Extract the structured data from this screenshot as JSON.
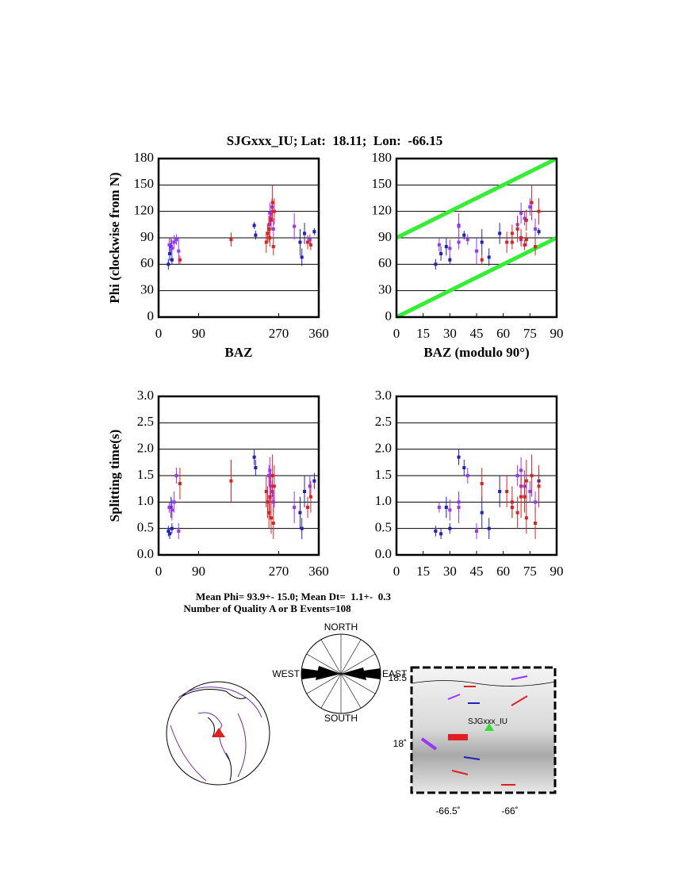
{
  "title": "SJGxxx_IU; Lat:  18.11;  Lon:  -66.15",
  "summary": [
    "Mean Phi= 93.9+- 15.0; Mean Dt=  1.1+-  0.3",
    "Number of Quality A or B Events=108"
  ],
  "rose": {
    "north": "NORTH",
    "south": "SOUTH",
    "east": "EAST",
    "west": "WEST"
  },
  "map": {
    "station": "SJGxxx_IU",
    "lat_labels": [
      "18.5",
      "18˚"
    ],
    "lon_labels": [
      "-66.5˚",
      "-66˚"
    ]
  },
  "chart_data": [
    {
      "type": "scatter",
      "ylabel": "Phi (clockwise from N)",
      "xlabel": "BAZ",
      "xlim": [
        0,
        360
      ],
      "ylim": [
        0,
        180
      ],
      "xticks": [
        0,
        90,
        270,
        360
      ],
      "yticks": [
        0,
        30,
        60,
        90,
        120,
        150,
        180
      ],
      "grid": true,
      "series": [
        {
          "color": "#2020c0",
          "x": [
            22,
            25,
            28,
            30,
            215,
            218,
            318,
            322,
            328,
            350
          ],
          "values": [
            60,
            72,
            80,
            65,
            104,
            93,
            85,
            68,
            95,
            97
          ],
          "errors": [
            6,
            8,
            10,
            5,
            4,
            5,
            15,
            10,
            12,
            4
          ]
        },
        {
          "color": "#9933ff",
          "x": [
            24,
            30,
            35,
            40,
            45,
            248,
            250,
            252,
            255,
            258,
            305,
            340
          ],
          "values": [
            82,
            78,
            85,
            88,
            75,
            105,
            118,
            112,
            125,
            100,
            103,
            88
          ],
          "errors": [
            8,
            10,
            8,
            6,
            15,
            10,
            12,
            8,
            10,
            12,
            15,
            6
          ]
        },
        {
          "color": "#e02020",
          "x": [
            48,
            163,
            242,
            245,
            248,
            250,
            253,
            256,
            258,
            260,
            335,
            342
          ],
          "values": [
            65,
            88,
            85,
            95,
            100,
            90,
            110,
            130,
            80,
            120,
            85,
            82
          ],
          "errors": [
            5,
            8,
            12,
            10,
            15,
            10,
            12,
            20,
            10,
            15,
            8,
            6
          ]
        }
      ]
    },
    {
      "type": "scatter",
      "xlabel": "BAZ (modulo 90°)",
      "xlim": [
        0,
        90
      ],
      "ylim": [
        0,
        180
      ],
      "xticks": [
        0,
        15,
        30,
        45,
        60,
        75,
        90
      ],
      "yticks": [
        0,
        30,
        60,
        90,
        120,
        150,
        180
      ],
      "grid": true,
      "reference_lines": [
        {
          "color": "#33ee33",
          "x": [
            0,
            90
          ],
          "y": [
            0,
            90
          ]
        },
        {
          "color": "#33ee33",
          "x": [
            0,
            90
          ],
          "y": [
            90,
            180
          ]
        }
      ],
      "series": [
        {
          "color": "#2020c0",
          "x": [
            22,
            25,
            28,
            30,
            35,
            38,
            48,
            52,
            58,
            80
          ],
          "values": [
            60,
            72,
            80,
            65,
            104,
            93,
            85,
            68,
            95,
            97
          ],
          "errors": [
            6,
            8,
            10,
            5,
            4,
            5,
            15,
            10,
            12,
            4
          ]
        },
        {
          "color": "#9933ff",
          "x": [
            24,
            30,
            35,
            40,
            45,
            68,
            70,
            72,
            75,
            78,
            35,
            70
          ],
          "values": [
            82,
            78,
            85,
            88,
            75,
            105,
            118,
            112,
            125,
            100,
            103,
            88
          ],
          "errors": [
            8,
            10,
            8,
            6,
            15,
            10,
            12,
            8,
            10,
            12,
            15,
            6
          ]
        },
        {
          "color": "#e02020",
          "x": [
            48,
            73,
            62,
            65,
            68,
            70,
            73,
            76,
            78,
            80,
            65,
            72
          ],
          "values": [
            65,
            88,
            85,
            95,
            100,
            90,
            110,
            130,
            80,
            120,
            85,
            82
          ],
          "errors": [
            5,
            8,
            12,
            10,
            15,
            10,
            12,
            20,
            10,
            15,
            8,
            6
          ]
        }
      ]
    },
    {
      "type": "scatter",
      "ylabel": "Splitting time(s)",
      "xlim": [
        0,
        360
      ],
      "ylim": [
        0,
        3
      ],
      "xticks": [
        0,
        90,
        270,
        360
      ],
      "yticks": [
        {
          "value": 0,
          "label": "0.0"
        },
        0.5,
        {
          "value": 1,
          "label": "1.0"
        },
        1.5,
        {
          "value": 2,
          "label": "2.0"
        },
        2.5,
        {
          "value": 3,
          "label": "3.0"
        }
      ],
      "grid": true,
      "series": [
        {
          "color": "#2020c0",
          "x": [
            22,
            25,
            28,
            30,
            215,
            218,
            318,
            322,
            328,
            350
          ],
          "values": [
            0.45,
            0.4,
            0.9,
            0.5,
            1.85,
            1.65,
            0.8,
            0.5,
            1.2,
            1.4
          ],
          "errors": [
            0.1,
            0.1,
            0.2,
            0.1,
            0.15,
            0.15,
            0.3,
            0.2,
            0.3,
            0.15
          ]
        },
        {
          "color": "#9933ff",
          "x": [
            24,
            30,
            35,
            40,
            45,
            248,
            250,
            252,
            255,
            258,
            305,
            340
          ],
          "values": [
            0.9,
            0.85,
            1.0,
            1.5,
            0.45,
            1.5,
            1.6,
            1.3,
            1.2,
            1.0,
            0.9,
            1.3
          ],
          "errors": [
            0.1,
            0.2,
            0.2,
            0.15,
            0.15,
            0.2,
            0.25,
            0.3,
            0.2,
            0.2,
            0.3,
            0.2
          ]
        },
        {
          "color": "#e02020",
          "x": [
            48,
            163,
            242,
            245,
            248,
            250,
            253,
            256,
            258,
            260,
            335,
            342
          ],
          "values": [
            1.35,
            1.4,
            1.2,
            1.0,
            0.8,
            1.1,
            0.7,
            1.5,
            0.6,
            1.3,
            0.9,
            1.1
          ],
          "errors": [
            0.3,
            0.4,
            0.3,
            0.3,
            0.3,
            0.4,
            0.3,
            0.4,
            0.3,
            0.4,
            0.2,
            0.3
          ]
        }
      ]
    },
    {
      "type": "scatter",
      "xlim": [
        0,
        90
      ],
      "ylim": [
        0,
        3
      ],
      "xticks": [
        0,
        15,
        30,
        45,
        60,
        75,
        90
      ],
      "yticks": [
        {
          "value": 0,
          "label": "0.0"
        },
        0.5,
        {
          "value": 1,
          "label": "1.0"
        },
        1.5,
        {
          "value": 2,
          "label": "2.0"
        },
        2.5,
        {
          "value": 3,
          "label": "3.0"
        }
      ],
      "grid": true,
      "series": [
        {
          "color": "#2020c0",
          "x": [
            22,
            25,
            28,
            30,
            35,
            38,
            48,
            52,
            58,
            80
          ],
          "values": [
            0.45,
            0.4,
            0.9,
            0.5,
            1.85,
            1.65,
            0.8,
            0.5,
            1.2,
            1.4
          ],
          "errors": [
            0.1,
            0.1,
            0.2,
            0.1,
            0.15,
            0.15,
            0.3,
            0.2,
            0.3,
            0.15
          ]
        },
        {
          "color": "#9933ff",
          "x": [
            24,
            30,
            35,
            40,
            45,
            68,
            70,
            72,
            75,
            78,
            35,
            70
          ],
          "values": [
            0.9,
            0.85,
            1.0,
            1.5,
            0.45,
            1.5,
            1.6,
            1.3,
            1.2,
            1.0,
            0.9,
            1.3
          ],
          "errors": [
            0.1,
            0.2,
            0.2,
            0.15,
            0.15,
            0.2,
            0.25,
            0.3,
            0.2,
            0.2,
            0.3,
            0.2
          ]
        },
        {
          "color": "#e02020",
          "x": [
            48,
            73,
            62,
            65,
            68,
            70,
            73,
            76,
            78,
            80,
            65,
            72
          ],
          "values": [
            1.35,
            1.4,
            1.2,
            1.0,
            0.8,
            1.1,
            0.7,
            1.5,
            0.6,
            1.3,
            0.9,
            1.1
          ],
          "errors": [
            0.3,
            0.4,
            0.3,
            0.3,
            0.3,
            0.4,
            0.3,
            0.4,
            0.3,
            0.4,
            0.2,
            0.3
          ]
        }
      ]
    }
  ]
}
